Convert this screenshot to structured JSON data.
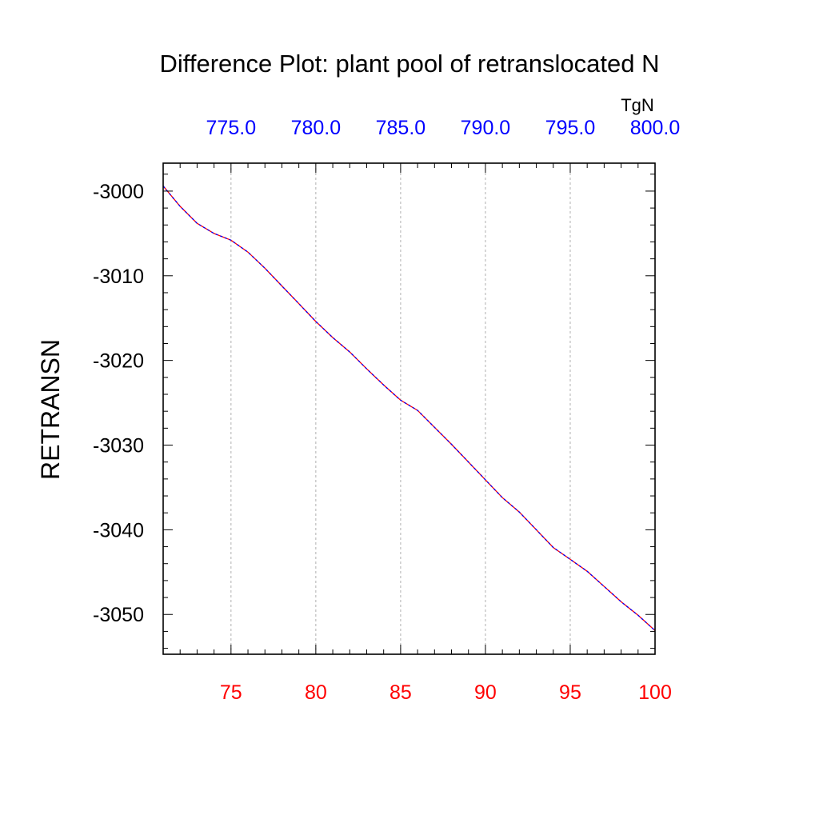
{
  "chart_data": {
    "type": "line",
    "title": "Difference Plot: plant pool of retranslocated N",
    "ylabel": "RETRANSN",
    "xlabel": "",
    "top_axis_units": "TgN",
    "xlim": [
      71,
      100
    ],
    "ylim": [
      -3054.7,
      -2996.7
    ],
    "grid": "vertical dashed at major x ticks",
    "bottom_axis": {
      "color": "#ff0000",
      "ticks": [
        75,
        80,
        85,
        90,
        95,
        100
      ],
      "tick_labels": [
        "75",
        "80",
        "85",
        "90",
        "95",
        "100"
      ]
    },
    "top_axis": {
      "color": "#0000ff",
      "tick_labels": [
        "775.0",
        "780.0",
        "785.0",
        "790.0",
        "795.0",
        "800.0"
      ]
    },
    "left_axis": {
      "ticks": [
        -3000,
        -3010,
        -3020,
        -3030,
        -3040,
        -3050
      ],
      "tick_labels": [
        "-3000",
        "-3010",
        "-3020",
        "-3030",
        "-3040",
        "-3050"
      ]
    },
    "series": [
      {
        "color": "#ff0000",
        "dashed": false,
        "x": [
          71,
          72,
          73,
          74,
          75,
          76,
          77,
          78,
          79,
          80,
          81,
          82,
          83,
          84,
          85,
          86,
          87,
          88,
          89,
          90,
          91,
          92,
          93,
          94,
          95,
          96,
          97,
          98,
          99,
          100
        ],
        "y": [
          -2999.4,
          -3001.8,
          -3003.8,
          -3005.0,
          -3005.8,
          -3007.2,
          -3009.1,
          -3011.2,
          -3013.3,
          -3015.4,
          -3017.3,
          -3019.0,
          -3021.0,
          -3022.9,
          -3024.7,
          -3025.9,
          -3027.9,
          -3029.9,
          -3032.0,
          -3034.1,
          -3036.2,
          -3037.9,
          -3040.0,
          -3042.1,
          -3043.5,
          -3044.9,
          -3046.7,
          -3048.5,
          -3050.1,
          -3051.9
        ]
      },
      {
        "color": "#0000ff",
        "dashed": true,
        "x": [
          71,
          72,
          73,
          74,
          75,
          76,
          77,
          78,
          79,
          80,
          81,
          82,
          83,
          84,
          85,
          86,
          87,
          88,
          89,
          90,
          91,
          92,
          93,
          94,
          95,
          96,
          97,
          98,
          99,
          100
        ],
        "y": [
          -2999.4,
          -3001.8,
          -3003.8,
          -3005.0,
          -3005.8,
          -3007.2,
          -3009.1,
          -3011.2,
          -3013.3,
          -3015.4,
          -3017.3,
          -3019.0,
          -3021.0,
          -3022.9,
          -3024.7,
          -3025.9,
          -3027.9,
          -3029.9,
          -3032.0,
          -3034.1,
          -3036.2,
          -3037.9,
          -3040.0,
          -3042.1,
          -3043.5,
          -3044.9,
          -3046.7,
          -3048.5,
          -3050.1,
          -3051.9
        ]
      }
    ]
  }
}
